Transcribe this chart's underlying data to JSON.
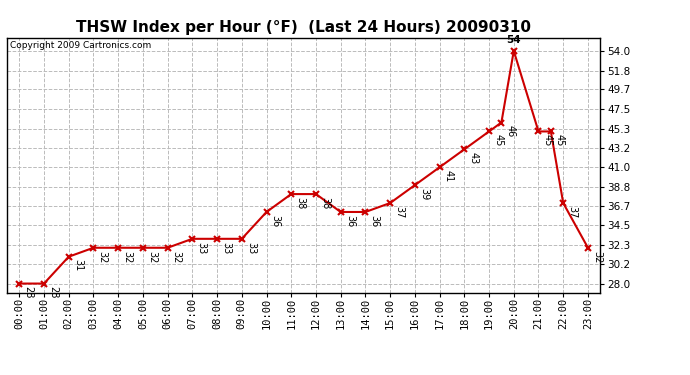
{
  "title": "THSW Index per Hour (°F)  (Last 24 Hours) 20090310",
  "copyright": "Copyright 2009 Cartronics.com",
  "x_labels": [
    "00:00",
    "01:00",
    "02:00",
    "03:00",
    "04:00",
    "05:00",
    "06:00",
    "07:00",
    "08:00",
    "09:00",
    "10:00",
    "11:00",
    "12:00",
    "13:00",
    "14:00",
    "15:00",
    "16:00",
    "17:00",
    "18:00",
    "19:00",
    "20:00",
    "21:00",
    "22:00",
    "23:00"
  ],
  "x_vals": [
    0,
    1,
    2,
    3,
    4,
    5,
    6,
    7,
    8,
    9,
    10,
    11,
    12,
    13,
    14,
    15,
    16,
    17,
    18,
    19,
    19.5,
    20,
    21,
    21.5,
    22,
    23
  ],
  "y_vals": [
    28,
    28,
    31,
    32,
    32,
    32,
    32,
    33,
    33,
    33,
    36,
    38,
    38,
    36,
    36,
    37,
    39,
    41,
    43,
    45,
    46,
    54,
    45,
    45,
    37,
    32
  ],
  "line_color": "#cc0000",
  "marker_color": "#cc0000",
  "bg_color": "#ffffff",
  "plot_bg_color": "#ffffff",
  "grid_color": "#bbbbbb",
  "ylim": [
    27.0,
    55.5
  ],
  "yticks": [
    28.0,
    30.2,
    32.3,
    34.5,
    36.7,
    38.8,
    41.0,
    43.2,
    45.3,
    47.5,
    49.7,
    51.8,
    54.0
  ],
  "title_fontsize": 11,
  "tick_fontsize": 7.5,
  "annotation_data": [
    [
      0,
      28,
      "28"
    ],
    [
      1,
      28,
      "28"
    ],
    [
      2,
      31,
      "31"
    ],
    [
      3,
      32,
      "32"
    ],
    [
      4,
      32,
      "32"
    ],
    [
      5,
      32,
      "32"
    ],
    [
      6,
      32,
      "32"
    ],
    [
      7,
      33,
      "33"
    ],
    [
      8,
      33,
      "33"
    ],
    [
      9,
      33,
      "33"
    ],
    [
      10,
      36,
      "36"
    ],
    [
      11,
      38,
      "38"
    ],
    [
      12,
      38,
      "38"
    ],
    [
      13,
      36,
      "36"
    ],
    [
      14,
      36,
      "36"
    ],
    [
      15,
      37,
      "37"
    ],
    [
      16,
      39,
      "39"
    ],
    [
      17,
      41,
      "41"
    ],
    [
      18,
      43,
      "43"
    ],
    [
      19,
      45,
      "45"
    ],
    [
      19.5,
      46,
      "46"
    ],
    [
      20,
      54,
      "54"
    ],
    [
      21,
      45,
      "45"
    ],
    [
      21.5,
      45,
      "45"
    ],
    [
      22,
      37,
      "37"
    ],
    [
      23,
      32,
      "32"
    ]
  ]
}
